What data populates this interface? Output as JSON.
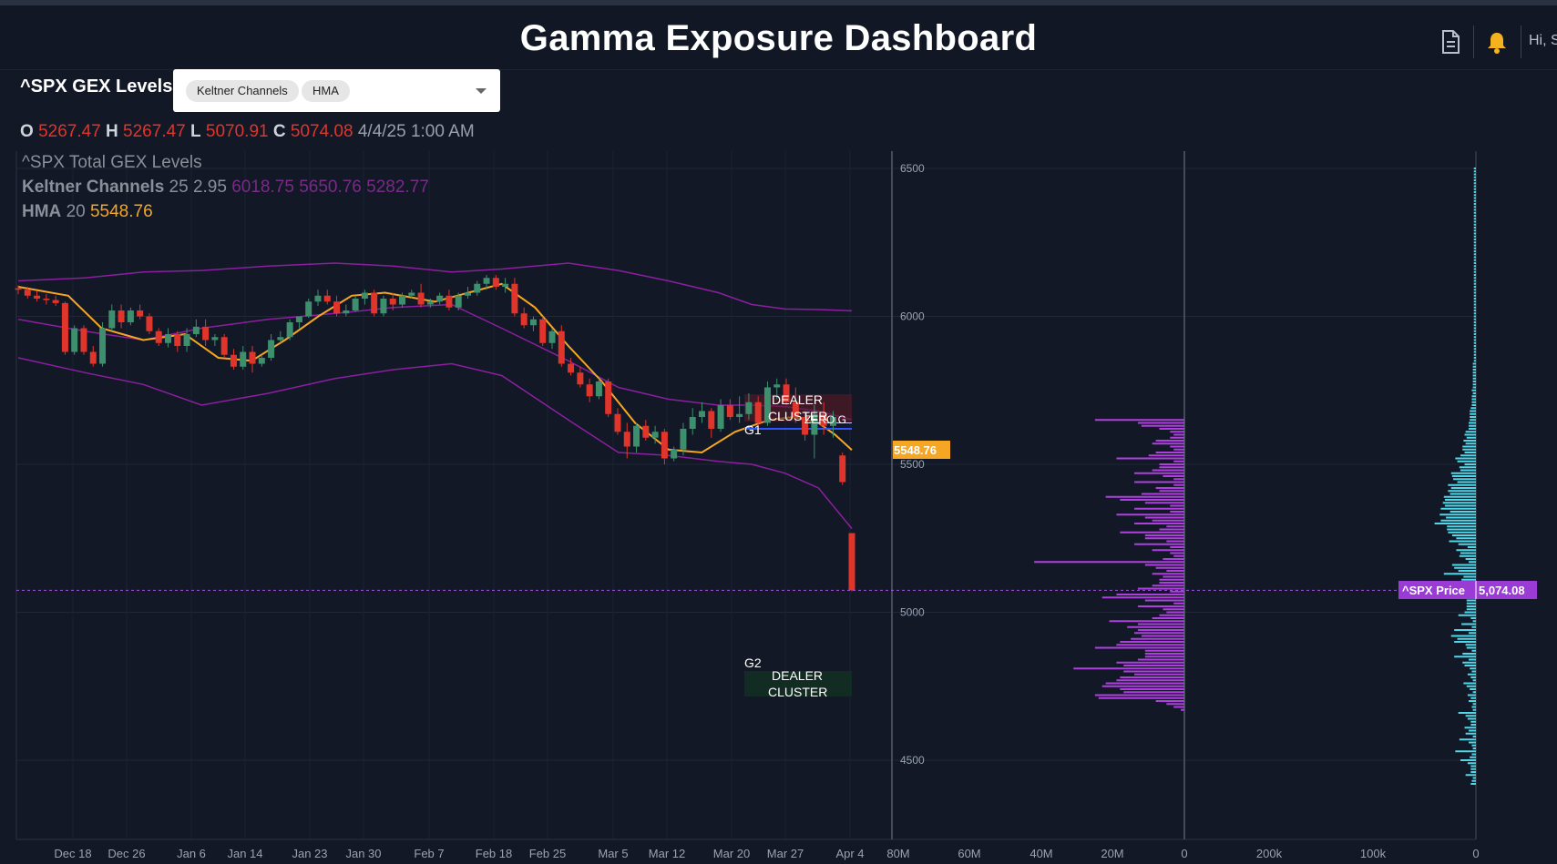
{
  "header": {
    "title": "Gamma Exposure Dashboard",
    "greeting": "Hi, S",
    "icons": [
      "document-icon",
      "bell-icon"
    ]
  },
  "toolbar": {
    "symbol_title": "^SPX GEX Levels",
    "indicators": [
      "Keltner Channels",
      "HMA"
    ]
  },
  "ohlc": {
    "o_label": "O",
    "o": "5267.47",
    "h_label": "H",
    "h": "5267.47",
    "l_label": "L",
    "l": "5070.91",
    "c_label": "C",
    "c": "5074.08",
    "datetime": "4/4/25 1:00 AM"
  },
  "legend": {
    "series_title": "^SPX Total GEX Levels",
    "keltner_label": "Keltner Channels",
    "keltner_params": "25 2.95",
    "keltner_values": "6018.75 5650.76 5282.77",
    "hma_label": "HMA",
    "hma_params": "20",
    "hma_value": "5548.76"
  },
  "annotations": {
    "g1": "G1",
    "g2": "G2",
    "dealer": "DEALER",
    "cluster": "CLUSTER",
    "zero_g": "ZERO G",
    "hma_tag": "5548.76",
    "price_tag_label": "^SPX Price",
    "price_tag_value": "5,074.08"
  },
  "colors": {
    "up_candle": "#3d8f6e",
    "down_candle": "#e0352b",
    "keltner": "#8b1fa0",
    "hma": "#f5a623",
    "gex_bars_purple": "#b03fe0",
    "gex_bars_cyan": "#4fd8e8",
    "background": "#121826"
  },
  "chart_data": [
    {
      "type": "candlestick",
      "x_ticks": [
        "Dec 18",
        "Dec 26",
        "Jan 6",
        "Jan 14",
        "Jan 23",
        "Jan 30",
        "Feb 7",
        "Feb 18",
        "Feb 25",
        "Mar 5",
        "Mar 12",
        "Mar 20",
        "Mar 27",
        "Apr 4"
      ],
      "y_ticks": [
        6500,
        6000,
        5500,
        5000,
        4500
      ],
      "ylim": [
        4220,
        6540
      ],
      "candles": [
        [
          6095,
          6105,
          6075,
          6090
        ],
        [
          6090,
          6100,
          6060,
          6070
        ],
        [
          6070,
          6085,
          6050,
          6060
        ],
        [
          6060,
          6075,
          6040,
          6055
        ],
        [
          6055,
          6070,
          6035,
          6045
        ],
        [
          6045,
          6050,
          5870,
          5880
        ],
        [
          5880,
          5970,
          5870,
          5960
        ],
        [
          5960,
          5970,
          5870,
          5880
        ],
        [
          5880,
          5900,
          5830,
          5840
        ],
        [
          5840,
          5980,
          5830,
          5960
        ],
        [
          5960,
          6040,
          5950,
          6020
        ],
        [
          6020,
          6040,
          5960,
          5980
        ],
        [
          5980,
          6030,
          5970,
          6020
        ],
        [
          6020,
          6040,
          5990,
          6000
        ],
        [
          6000,
          6010,
          5940,
          5950
        ],
        [
          5950,
          5960,
          5900,
          5910
        ],
        [
          5910,
          5960,
          5895,
          5940
        ],
        [
          5940,
          5950,
          5880,
          5900
        ],
        [
          5900,
          5960,
          5880,
          5940
        ],
        [
          5940,
          5990,
          5930,
          5965
        ],
        [
          5965,
          5990,
          5900,
          5920
        ],
        [
          5920,
          5940,
          5900,
          5930
        ],
        [
          5930,
          5940,
          5860,
          5870
        ],
        [
          5870,
          5890,
          5820,
          5830
        ],
        [
          5830,
          5900,
          5820,
          5880
        ],
        [
          5880,
          5900,
          5810,
          5840
        ],
        [
          5840,
          5870,
          5830,
          5860
        ],
        [
          5860,
          5940,
          5850,
          5920
        ],
        [
          5920,
          5950,
          5910,
          5930
        ],
        [
          5930,
          5990,
          5920,
          5980
        ],
        [
          5980,
          6000,
          5960,
          6000
        ],
        [
          6000,
          6060,
          5995,
          6050
        ],
        [
          6050,
          6090,
          6035,
          6070
        ],
        [
          6070,
          6090,
          6040,
          6050
        ],
        [
          6050,
          6070,
          6000,
          6010
        ],
        [
          6010,
          6040,
          6000,
          6020
        ],
        [
          6020,
          6070,
          6015,
          6060
        ],
        [
          6060,
          6090,
          6040,
          6080
        ],
        [
          6080,
          6090,
          6000,
          6010
        ],
        [
          6010,
          6070,
          6000,
          6060
        ],
        [
          6060,
          6080,
          6020,
          6040
        ],
        [
          6040,
          6080,
          6030,
          6070
        ],
        [
          6070,
          6090,
          6060,
          6080
        ],
        [
          6080,
          6110,
          6030,
          6040
        ],
        [
          6040,
          6060,
          6030,
          6050
        ],
        [
          6050,
          6080,
          6040,
          6070
        ],
        [
          6070,
          6090,
          6020,
          6030
        ],
        [
          6030,
          6080,
          6020,
          6070
        ],
        [
          6070,
          6100,
          6060,
          6080
        ],
        [
          6080,
          6120,
          6070,
          6110
        ],
        [
          6110,
          6140,
          6090,
          6130
        ],
        [
          6130,
          6140,
          6090,
          6100
        ],
        [
          6100,
          6130,
          6080,
          6110
        ],
        [
          6110,
          6130,
          6000,
          6010
        ],
        [
          6010,
          6030,
          5960,
          5970
        ],
        [
          5970,
          6000,
          5950,
          5990
        ],
        [
          5990,
          6000,
          5900,
          5910
        ],
        [
          5910,
          5960,
          5890,
          5950
        ],
        [
          5950,
          5970,
          5830,
          5840
        ],
        [
          5840,
          5860,
          5800,
          5810
        ],
        [
          5810,
          5830,
          5760,
          5770
        ],
        [
          5770,
          5790,
          5710,
          5730
        ],
        [
          5730,
          5790,
          5720,
          5780
        ],
        [
          5780,
          5790,
          5660,
          5670
        ],
        [
          5670,
          5690,
          5600,
          5610
        ],
        [
          5610,
          5640,
          5520,
          5560
        ],
        [
          5560,
          5640,
          5540,
          5630
        ],
        [
          5630,
          5650,
          5580,
          5590
        ],
        [
          5590,
          5630,
          5570,
          5610
        ],
        [
          5610,
          5620,
          5500,
          5520
        ],
        [
          5520,
          5560,
          5510,
          5550
        ],
        [
          5550,
          5640,
          5530,
          5620
        ],
        [
          5620,
          5690,
          5600,
          5660
        ],
        [
          5660,
          5710,
          5640,
          5680
        ],
        [
          5680,
          5690,
          5590,
          5620
        ],
        [
          5620,
          5720,
          5610,
          5700
        ],
        [
          5700,
          5720,
          5650,
          5660
        ],
        [
          5660,
          5730,
          5640,
          5670
        ],
        [
          5670,
          5740,
          5650,
          5710
        ],
        [
          5710,
          5730,
          5610,
          5640
        ],
        [
          5640,
          5780,
          5630,
          5760
        ],
        [
          5760,
          5790,
          5720,
          5770
        ],
        [
          5770,
          5790,
          5700,
          5710
        ],
        [
          5710,
          5760,
          5640,
          5660
        ],
        [
          5660,
          5680,
          5580,
          5600
        ],
        [
          5600,
          5700,
          5520,
          5670
        ],
        [
          5670,
          5710,
          5600,
          5630
        ],
        [
          5630,
          5680,
          5590,
          5660
        ],
        [
          5530,
          5540,
          5430,
          5440
        ],
        [
          5267.47,
          5267.47,
          5070.91,
          5074.08
        ]
      ],
      "keltner_upper": [
        [
          0,
          6120
        ],
        [
          8,
          6130
        ],
        [
          15,
          6150
        ],
        [
          22,
          6155
        ],
        [
          30,
          6170
        ],
        [
          38,
          6180
        ],
        [
          45,
          6170
        ],
        [
          52,
          6150
        ],
        [
          58,
          6160
        ],
        [
          66,
          6180
        ],
        [
          72,
          6155
        ],
        [
          78,
          6120
        ],
        [
          84,
          6080
        ],
        [
          88,
          6040
        ],
        [
          92,
          6025
        ],
        [
          96,
          6023
        ],
        [
          100,
          6018.75
        ]
      ],
      "keltner_middle": [
        [
          0,
          5990
        ],
        [
          8,
          5950
        ],
        [
          15,
          5920
        ],
        [
          22,
          5960
        ],
        [
          30,
          5990
        ],
        [
          38,
          6010
        ],
        [
          45,
          6030
        ],
        [
          52,
          6040
        ],
        [
          58,
          5960
        ],
        [
          66,
          5850
        ],
        [
          72,
          5760
        ],
        [
          78,
          5720
        ],
        [
          84,
          5700
        ],
        [
          88,
          5700
        ],
        [
          92,
          5695
        ],
        [
          96,
          5680
        ],
        [
          100,
          5650.76
        ]
      ],
      "keltner_lower": [
        [
          0,
          5860
        ],
        [
          8,
          5810
        ],
        [
          15,
          5770
        ],
        [
          22,
          5700
        ],
        [
          30,
          5740
        ],
        [
          38,
          5790
        ],
        [
          45,
          5820
        ],
        [
          52,
          5840
        ],
        [
          58,
          5800
        ],
        [
          66,
          5650
        ],
        [
          72,
          5540
        ],
        [
          78,
          5530
        ],
        [
          84,
          5510
        ],
        [
          88,
          5500
        ],
        [
          92,
          5470
        ],
        [
          96,
          5420
        ],
        [
          100,
          5282.77
        ]
      ],
      "hma": [
        [
          0,
          6100
        ],
        [
          6,
          6070
        ],
        [
          10,
          5960
        ],
        [
          15,
          5920
        ],
        [
          20,
          5940
        ],
        [
          24,
          5860
        ],
        [
          28,
          5850
        ],
        [
          32,
          5920
        ],
        [
          36,
          6000
        ],
        [
          40,
          6070
        ],
        [
          44,
          6080
        ],
        [
          50,
          6050
        ],
        [
          54,
          6080
        ],
        [
          58,
          6110
        ],
        [
          62,
          6030
        ],
        [
          66,
          5900
        ],
        [
          70,
          5780
        ],
        [
          74,
          5640
        ],
        [
          78,
          5550
        ],
        [
          82,
          5540
        ],
        [
          86,
          5610
        ],
        [
          90,
          5650
        ],
        [
          93,
          5660
        ],
        [
          96,
          5640
        ],
        [
          98,
          5600
        ],
        [
          100,
          5548.76
        ]
      ],
      "levels": {
        "g1": 5620,
        "zero_g": 5640,
        "price": 5074.08,
        "g2": 4830
      }
    },
    {
      "type": "bar",
      "orientation": "horizontal",
      "series_color": "purple",
      "x_ticks": [
        "80M",
        "60M",
        "40M",
        "20M",
        "0"
      ],
      "xlim": [
        80,
        0
      ],
      "strike_min": 4670,
      "strike_max": 5650,
      "strike_step": 10,
      "values": [
        1,
        3,
        5,
        8,
        24,
        25,
        17,
        18,
        23,
        22,
        19,
        18,
        14,
        17,
        31,
        17,
        19,
        13,
        11,
        11,
        11,
        25,
        19,
        18,
        15,
        12,
        14,
        13,
        16,
        13,
        21,
        9,
        7,
        5,
        6,
        13,
        3,
        11,
        23,
        19,
        4,
        13,
        9,
        7,
        7,
        6,
        9,
        5,
        8,
        11,
        42,
        6,
        3,
        4,
        9,
        4,
        14,
        5,
        11,
        11,
        18,
        7,
        5,
        14,
        9,
        11,
        19,
        4,
        14,
        4,
        11,
        18,
        22,
        12,
        7,
        8,
        3,
        14,
        3,
        6,
        14,
        9,
        7,
        7,
        3,
        19,
        10,
        8,
        3,
        4,
        9,
        8,
        4,
        3,
        4,
        7,
        12,
        13,
        25
      ]
    },
    {
      "type": "bar",
      "orientation": "horizontal",
      "series_color": "cyan",
      "x_ticks": [
        "200k",
        "100k",
        "0"
      ],
      "xlim": [
        250,
        0
      ],
      "strike_min": 4420,
      "strike_max": 6450,
      "strike_step": 10,
      "values": [
        5,
        4,
        3,
        10,
        5,
        5,
        5,
        8,
        15,
        6,
        4,
        20,
        3,
        4,
        7,
        16,
        3,
        10,
        7,
        11,
        5,
        5,
        8,
        10,
        17,
        3,
        4,
        3,
        7,
        5,
        8,
        3,
        6,
        9,
        12,
        3,
        5,
        8,
        4,
        6,
        11,
        13,
        7,
        21,
        13,
        4,
        9,
        10,
        21,
        18,
        24,
        7,
        21,
        4,
        14,
        3,
        5,
        17,
        11,
        9,
        9,
        9,
        9,
        20,
        19,
        38,
        12,
        5,
        7,
        14,
        12,
        31,
        17,
        21,
        23,
        7,
        10,
        16,
        15,
        19,
        8,
        17,
        26,
        19,
        23,
        27,
        28,
        28,
        40,
        34,
        29,
        35,
        25,
        34,
        30,
        32,
        30,
        31,
        25,
        27,
        24,
        27,
        18,
        22,
        23,
        24,
        15,
        16,
        11,
        18,
        20,
        15,
        11,
        13,
        13,
        10,
        12,
        9,
        11,
        10,
        7,
        7,
        7,
        6,
        6,
        6,
        6,
        5,
        4,
        4,
        4,
        4,
        3,
        4,
        3,
        3,
        3,
        3,
        3,
        3,
        3,
        3,
        3,
        2,
        2,
        2,
        2,
        2,
        2,
        2,
        2,
        2,
        2,
        2,
        2,
        2,
        2,
        2,
        2,
        2,
        2,
        2,
        2,
        2,
        2,
        2,
        2,
        2,
        2,
        2,
        2,
        2,
        2,
        2,
        2,
        2,
        2,
        2,
        2,
        2,
        2,
        2,
        2,
        2,
        2,
        2,
        2,
        2,
        2,
        2,
        2,
        2,
        2,
        2,
        2,
        2,
        2,
        2,
        2,
        2,
        2,
        2,
        2,
        2,
        2,
        2,
        2,
        2,
        2
      ]
    }
  ]
}
